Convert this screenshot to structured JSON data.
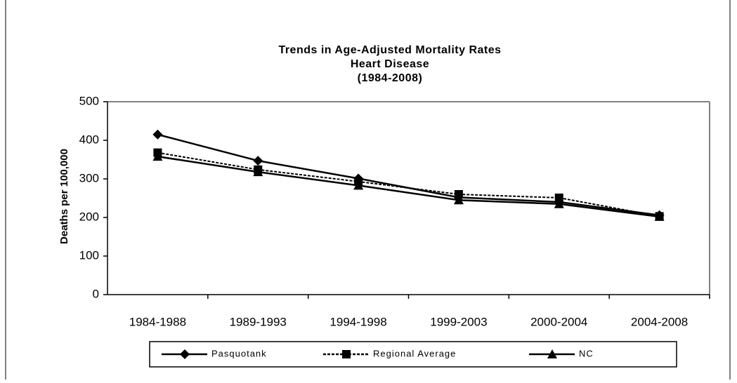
{
  "chart_data": {
    "type": "line",
    "title": [
      "Trends in Age-Adjusted  Mortality Rates",
      "Heart Disease",
      "(1984-2008)"
    ],
    "y_label": "Deaths per 100,000",
    "categories": [
      "1984-1988",
      "1989-1993",
      "1994-1998",
      "1999-2003",
      "2000-2004",
      "2004-2008"
    ],
    "series": [
      {
        "name": "Pasquotank",
        "color": "#000000",
        "marker": "diamond",
        "dash": false,
        "values": [
          415,
          347,
          301,
          252,
          240,
          206
        ]
      },
      {
        "name": "Regional Average",
        "color": "#000000",
        "marker": "square",
        "dash": true,
        "values": [
          368,
          324,
          293,
          260,
          251,
          203
        ]
      },
      {
        "name": "NC",
        "color": "#000000",
        "marker": "triangle",
        "dash": false,
        "values": [
          358,
          318,
          283,
          245,
          235,
          202
        ]
      }
    ],
    "ylim": [
      0,
      500
    ],
    "yticks": [
      0,
      100,
      200,
      300,
      400,
      500
    ],
    "grid": false,
    "legend": "bottom"
  }
}
